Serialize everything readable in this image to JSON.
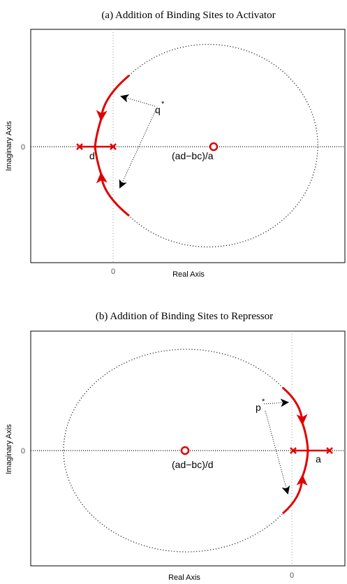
{
  "colors": {
    "locus": "#e00000",
    "axis": "#000000",
    "grid": "#9a9a9a"
  },
  "panel_a": {
    "title": "(a) Addition of Binding Sites to Activator",
    "xlabel": "Real Axis",
    "ylabel": "Imaginary Axis",
    "xtick": "0",
    "ytick": "0",
    "label_d": "d",
    "label_center": "(ad−bc)/a",
    "label_q": "q",
    "label_q_sup": "*"
  },
  "panel_b": {
    "title": "(b) Addition of Binding Sites to Repressor",
    "xlabel": "Real Axis",
    "ylabel": "Imaginary Axis",
    "xtick": "0",
    "ytick": "0",
    "label_a": "a",
    "label_center": "(ad−bc)/d",
    "label_p": "p",
    "label_p_sup": "*"
  },
  "icons": [
    "pole-x-icon",
    "zero-circle-icon",
    "arrowhead-icon"
  ]
}
